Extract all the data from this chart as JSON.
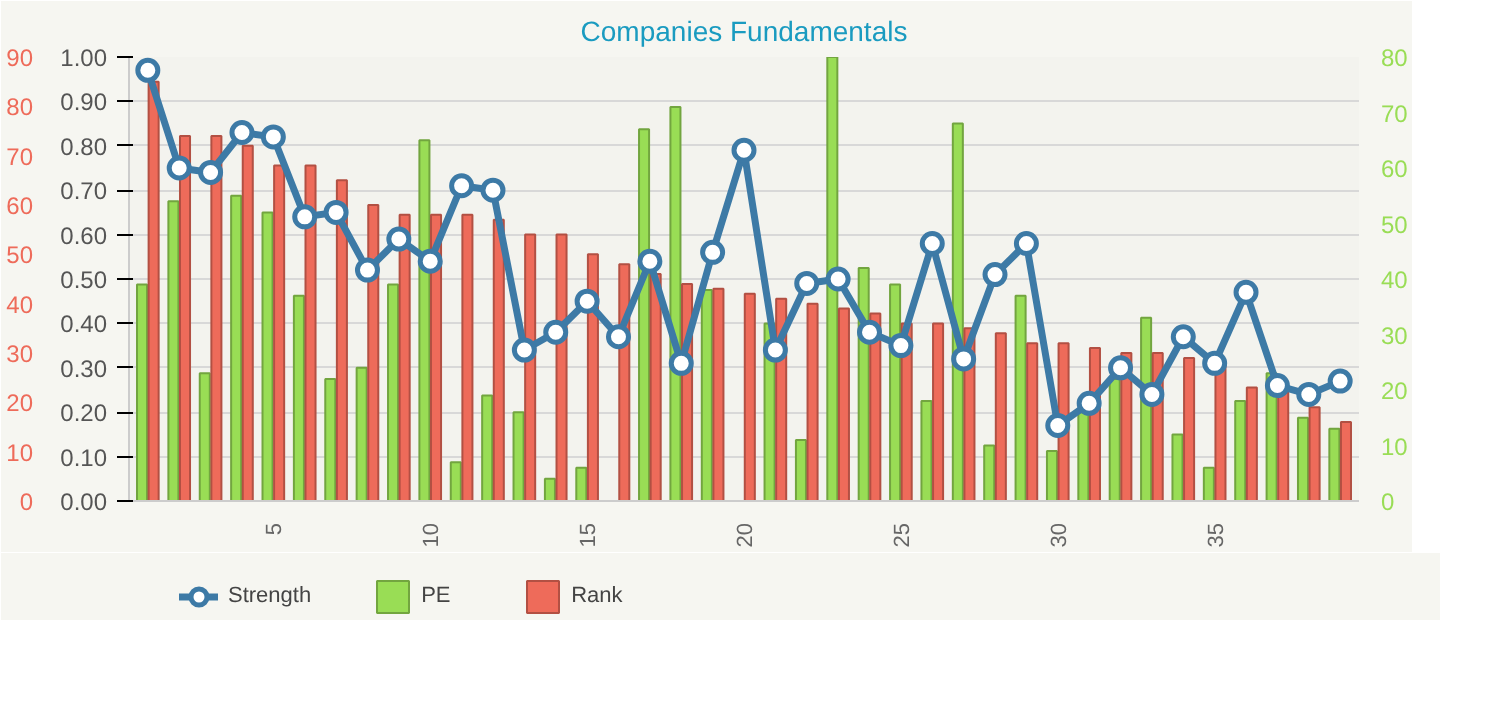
{
  "chart_data": {
    "type": "bar",
    "title": "Companies Fundamentals",
    "x": [
      1,
      2,
      3,
      4,
      5,
      6,
      7,
      8,
      9,
      10,
      11,
      12,
      13,
      14,
      15,
      16,
      17,
      18,
      19,
      20,
      21,
      22,
      23,
      24,
      25,
      26,
      27,
      28,
      29,
      30,
      31,
      32,
      33,
      34,
      35,
      36,
      37,
      38,
      39
    ],
    "xlim": [
      0.4,
      39.6
    ],
    "xticks": [
      5,
      10,
      15,
      20,
      25,
      30,
      35
    ],
    "ylim": [
      0,
      1
    ],
    "yticks": [
      {
        "value": 0,
        "label": "0.00"
      },
      {
        "value": 0.1,
        "label": "0.10"
      },
      {
        "value": 0.2,
        "label": "0.20"
      },
      {
        "value": 0.3,
        "label": "0.30"
      },
      {
        "value": 0.4,
        "label": "0.40"
      },
      {
        "value": 0.5,
        "label": "0.50"
      },
      {
        "value": 0.6,
        "label": "0.60"
      },
      {
        "value": 0.7,
        "label": "0.70"
      },
      {
        "value": 0.8,
        "label": "0.80"
      },
      {
        "value": 0.9,
        "label": "0.90"
      },
      {
        "value": 1,
        "label": "1.00"
      }
    ],
    "y2lim": [
      0,
      80
    ],
    "y2ticks": [
      0,
      10,
      20,
      30,
      40,
      50,
      60,
      70,
      80
    ],
    "y3lim": [
      0,
      90
    ],
    "y3ticks": [
      0,
      10,
      20,
      30,
      40,
      50,
      60,
      70,
      80,
      90
    ],
    "grid": "y",
    "legend": "bottom left",
    "marker": "circle",
    "line_style": "solid",
    "series": [
      {
        "name": "Strength",
        "type": "line",
        "color": "#3d7aa6",
        "values": [
          0.97,
          0.75,
          0.74,
          0.83,
          0.82,
          0.64,
          0.65,
          0.52,
          0.59,
          0.54,
          0.71,
          0.7,
          0.34,
          0.38,
          0.45,
          0.37,
          0.54,
          0.31,
          0.56,
          0.79,
          0.34,
          0.49,
          0.5,
          0.38,
          0.35,
          0.58,
          0.32,
          0.51,
          0.58,
          0.17,
          0.22,
          0.3,
          0.24,
          0.37,
          0.31,
          0.47,
          0.26,
          0.24,
          0.27
        ]
      },
      {
        "name": "PE",
        "axis": "y2",
        "color": "#99dd55",
        "values": [
          39,
          54,
          23,
          55,
          52,
          37,
          22,
          24,
          39,
          65,
          7,
          19,
          16,
          4,
          6,
          null,
          67,
          71,
          38,
          null,
          32,
          11,
          80,
          42,
          39,
          18,
          68,
          10,
          37,
          9,
          16,
          22,
          33,
          12,
          6,
          18,
          23,
          15,
          13
        ]
      },
      {
        "name": "Rank",
        "axis": "y3",
        "color": "#ee6b5a",
        "values": [
          85,
          74,
          74,
          72,
          68,
          68,
          65,
          60,
          58,
          58,
          58,
          57,
          54,
          54,
          50,
          48,
          46,
          44,
          43,
          42,
          41,
          40,
          39,
          38,
          36,
          36,
          35,
          34,
          32,
          32,
          31,
          30,
          30,
          29,
          28,
          23,
          22,
          19,
          16
        ]
      }
    ]
  }
}
